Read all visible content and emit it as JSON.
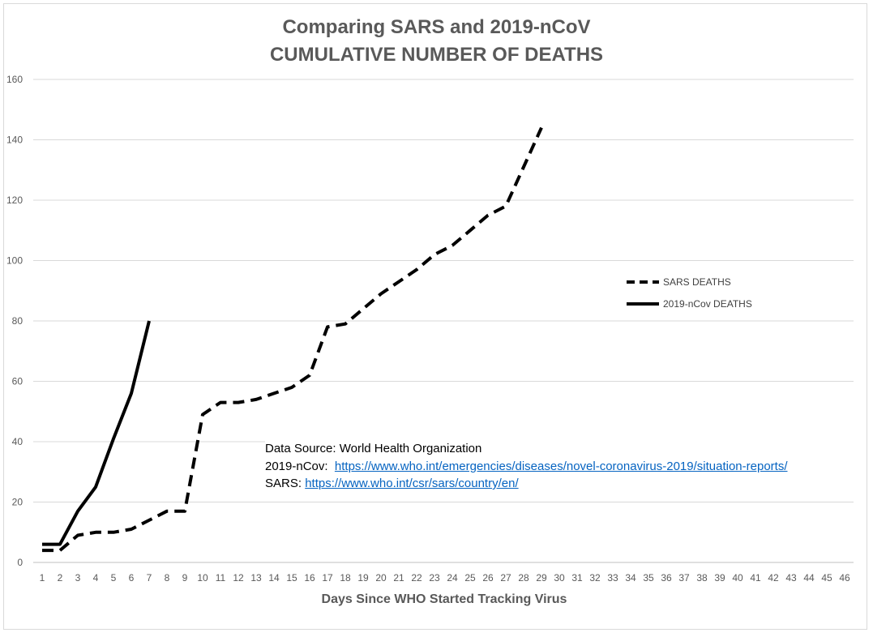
{
  "chart_data": {
    "type": "line",
    "title": "Comparing SARS and 2019-nCoV",
    "subtitle": "CUMULATIVE NUMBER OF DEATHS",
    "xlabel": "Days Since WHO Started Tracking Virus",
    "ylabel": "",
    "ylim": [
      0,
      160
    ],
    "yticks": [
      0,
      20,
      40,
      60,
      80,
      100,
      120,
      140,
      160
    ],
    "x_categories": [
      1,
      2,
      3,
      4,
      5,
      6,
      7,
      8,
      9,
      10,
      11,
      12,
      13,
      14,
      15,
      16,
      17,
      18,
      19,
      20,
      21,
      22,
      23,
      24,
      25,
      26,
      27,
      28,
      29,
      30,
      31,
      32,
      33,
      34,
      35,
      36,
      37,
      38,
      39,
      40,
      41,
      42,
      43,
      44,
      45,
      46
    ],
    "grid": "horizontal",
    "legend_position": "right",
    "series": [
      {
        "name": "SARS DEATHS",
        "style": "dashed",
        "color": "#000000",
        "x": [
          1,
          2,
          3,
          4,
          5,
          6,
          7,
          8,
          9,
          10,
          11,
          12,
          13,
          14,
          15,
          16,
          17,
          18,
          19,
          20,
          21,
          22,
          23,
          24,
          25,
          26,
          27,
          28,
          29
        ],
        "values": [
          4,
          4,
          9,
          10,
          10,
          11,
          14,
          17,
          17,
          49,
          53,
          53,
          54,
          56,
          58,
          62,
          78,
          79,
          84,
          89,
          93,
          97,
          102,
          105,
          110,
          115,
          118,
          131,
          144
        ]
      },
      {
        "name": "2019-nCov DEATHS",
        "style": "solid",
        "color": "#000000",
        "x": [
          1,
          2,
          3,
          4,
          5,
          6,
          7
        ],
        "values": [
          6,
          6,
          17,
          25,
          41,
          56,
          80
        ]
      }
    ]
  },
  "annotation": {
    "line1": "Data Source: World Health Organization",
    "line2_label": "2019-nCov:  ",
    "line2_link": "https://www.who.int/emergencies/diseases/novel-coronavirus-2019/situation-reports/",
    "line3_label": "SARS: ",
    "line3_link": "https://www.who.int/csr/sars/country/en/"
  }
}
